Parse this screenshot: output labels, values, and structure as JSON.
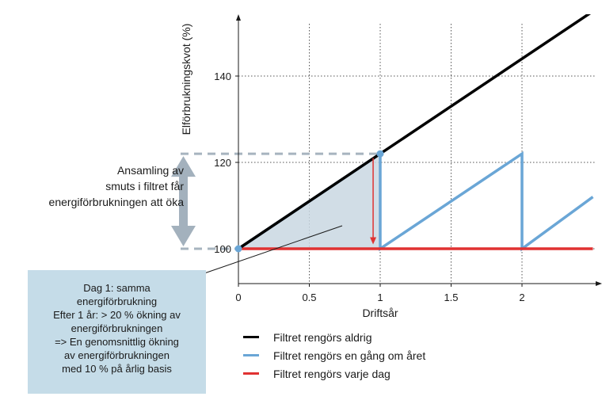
{
  "chart_data": {
    "type": "line",
    "ylabel": "Elförbrukningskvot (%)",
    "xlabel": "Driftsår",
    "x_ticks": [
      "0",
      "0.5",
      "1",
      "1.5",
      "2"
    ],
    "x_tick_values": [
      0,
      0.5,
      1,
      1.5,
      2
    ],
    "y_ticks": [
      "100",
      "120",
      "140"
    ],
    "y_tick_values": [
      100,
      120,
      140
    ],
    "xlim": [
      0,
      2.55
    ],
    "ylim": [
      97.5,
      153.5
    ],
    "grid": "dotted",
    "series": [
      {
        "name": "Filtret rengörs aldrig",
        "color": "#000000",
        "x": [
          0,
          1,
          2.5
        ],
        "y": [
          100,
          122,
          155
        ]
      },
      {
        "name": "Filtret rengörs en gång om året",
        "color": "#6aa6d6",
        "x": [
          0,
          1,
          1,
          2,
          2,
          2.5
        ],
        "y": [
          100,
          122,
          100,
          122,
          100,
          112
        ]
      },
      {
        "name": "Filtret rengörs varje dag",
        "color": "#e03232",
        "x": [
          0,
          2.5
        ],
        "y": [
          100,
          100
        ]
      }
    ],
    "shaded_area": {
      "x": [
        0,
        1,
        1
      ],
      "y": [
        100,
        122,
        100
      ],
      "color": "#c9d7e2"
    },
    "arrow_down": {
      "x": 0.95,
      "from": 121,
      "to": 101,
      "color": "#e03232"
    },
    "reference_lines_y": [
      100,
      122
    ]
  },
  "side_note": [
    "Ansamling av",
    "smuts i filtret får",
    "energiförbrukningen att öka"
  ],
  "callout_lines": [
    "Dag 1: samma",
    "energiförbrukning",
    "Efter 1 år: > 20 % ökning av",
    "energiförbrukningen",
    "=> En genomsnittlig ökning",
    "av energiförbrukningen",
    "med 10 % på årlig basis"
  ],
  "colors": {
    "side_arrow": "#a3b1bd",
    "dashed_ref": "#a7b4bf",
    "callout_bg": "#c5dce8"
  }
}
